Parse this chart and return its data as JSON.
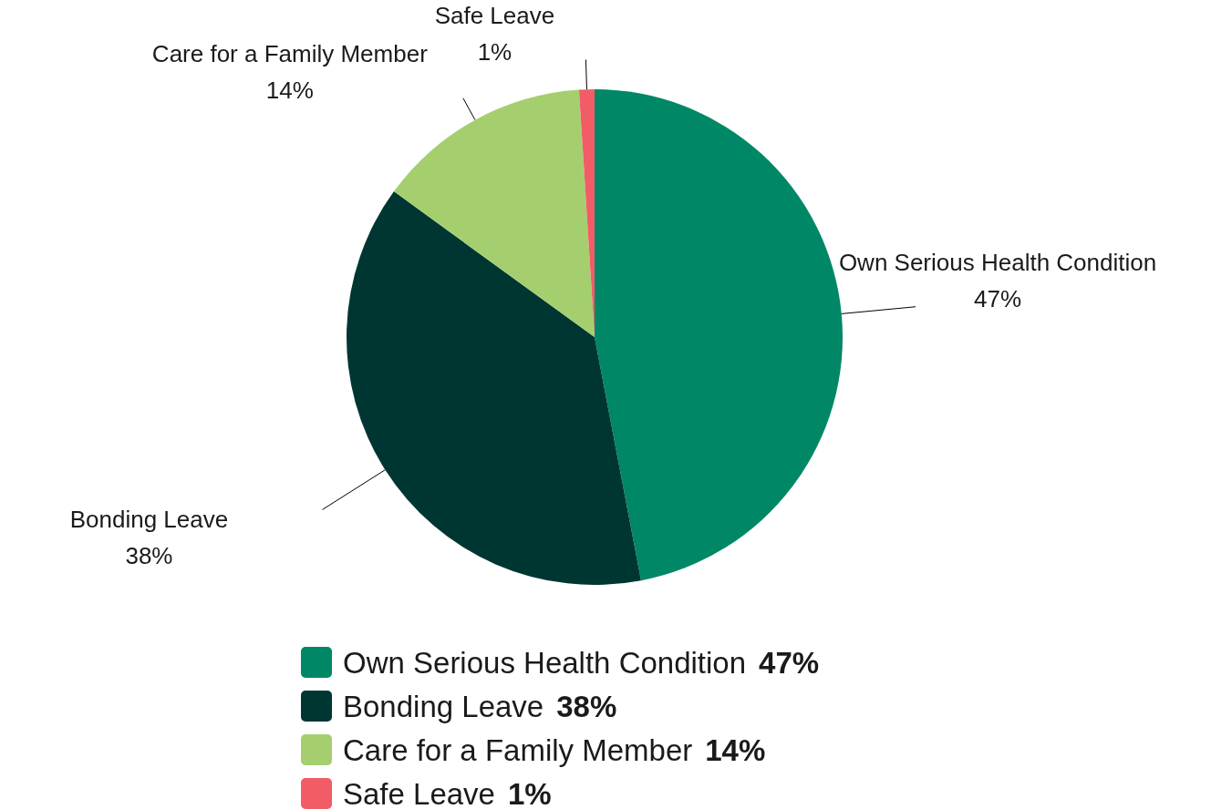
{
  "chart_data": {
    "type": "pie",
    "categories": [
      "Own Serious Health Condition",
      "Bonding Leave",
      "Care for a Family Member",
      "Safe Leave"
    ],
    "values": [
      47,
      38,
      14,
      1
    ],
    "colors": [
      "#008766",
      "#003632",
      "#a5cf6f",
      "#f25c66"
    ],
    "value_labels": [
      "47%",
      "38%",
      "14%",
      "1%"
    ],
    "legend": "bottom"
  }
}
